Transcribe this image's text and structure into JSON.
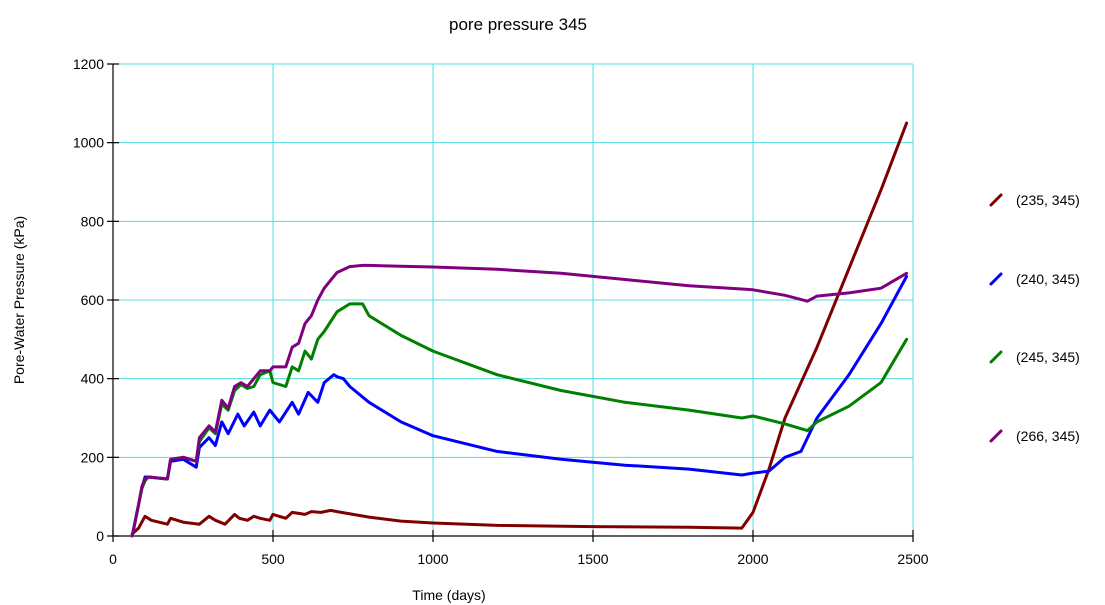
{
  "chart_data": {
    "type": "line",
    "title": "pore pressure 345",
    "xlabel": "Time (days)",
    "ylabel": "Pore-Water Pressure (kPa)",
    "xlim": [
      0,
      2500
    ],
    "ylim": [
      0,
      1200
    ],
    "xticks": [
      0,
      500,
      1000,
      1500,
      2000,
      2500
    ],
    "yticks": [
      0,
      200,
      400,
      600,
      800,
      1000,
      1200
    ],
    "grid": true,
    "grid_color": "#55dddd",
    "legend_position": "right",
    "series": [
      {
        "name": "(235, 345)",
        "color": "#800000",
        "x": [
          60,
          80,
          100,
          120,
          170,
          180,
          220,
          270,
          300,
          320,
          350,
          380,
          395,
          420,
          440,
          460,
          490,
          500,
          540,
          560,
          600,
          620,
          650,
          680,
          700,
          750,
          800,
          900,
          1000,
          1200,
          1500,
          1800,
          1965,
          2000,
          2050,
          2100,
          2200,
          2300,
          2400,
          2480
        ],
        "y": [
          5,
          20,
          50,
          40,
          30,
          45,
          35,
          30,
          50,
          40,
          30,
          55,
          45,
          40,
          50,
          45,
          40,
          55,
          45,
          60,
          55,
          62,
          60,
          65,
          62,
          55,
          48,
          38,
          33,
          27,
          24,
          22,
          20,
          60,
          170,
          300,
          480,
          680,
          880,
          1050
        ]
      },
      {
        "name": "(240, 345)",
        "color": "#0000ff",
        "x": [
          60,
          70,
          80,
          90,
          100,
          110,
          170,
          180,
          220,
          260,
          270,
          300,
          320,
          340,
          360,
          390,
          410,
          440,
          460,
          490,
          520,
          560,
          580,
          610,
          640,
          660,
          690,
          700,
          720,
          740,
          800,
          900,
          1000,
          1200,
          1400,
          1600,
          1800,
          1965,
          2000,
          2050,
          2100,
          2150,
          2200,
          2300,
          2400,
          2480
        ],
        "y": [
          0,
          40,
          80,
          120,
          150,
          150,
          145,
          190,
          195,
          175,
          225,
          250,
          230,
          290,
          260,
          310,
          280,
          315,
          280,
          320,
          290,
          340,
          310,
          365,
          340,
          390,
          410,
          405,
          400,
          380,
          340,
          290,
          255,
          215,
          195,
          180,
          170,
          155,
          160,
          165,
          200,
          215,
          300,
          410,
          540,
          660
        ]
      },
      {
        "name": "(245, 345)",
        "color": "#008000",
        "x": [
          60,
          70,
          80,
          90,
          100,
          110,
          170,
          180,
          220,
          260,
          270,
          300,
          320,
          340,
          360,
          380,
          400,
          420,
          440,
          460,
          490,
          500,
          540,
          560,
          580,
          600,
          620,
          640,
          660,
          700,
          740,
          780,
          800,
          900,
          1000,
          1200,
          1400,
          1600,
          1800,
          1965,
          2000,
          2100,
          2170,
          2200,
          2300,
          2400,
          2480
        ],
        "y": [
          0,
          40,
          80,
          120,
          140,
          150,
          145,
          195,
          200,
          190,
          240,
          275,
          260,
          335,
          320,
          370,
          385,
          375,
          380,
          410,
          420,
          390,
          380,
          430,
          420,
          470,
          450,
          500,
          520,
          570,
          590,
          590,
          560,
          510,
          470,
          410,
          370,
          340,
          320,
          300,
          305,
          285,
          268,
          290,
          330,
          390,
          500
        ]
      },
      {
        "name": "(266, 345)",
        "color": "#800080",
        "x": [
          60,
          70,
          80,
          90,
          100,
          110,
          170,
          180,
          220,
          260,
          270,
          300,
          320,
          340,
          360,
          380,
          400,
          420,
          440,
          460,
          490,
          500,
          540,
          560,
          580,
          600,
          620,
          640,
          660,
          700,
          740,
          780,
          800,
          900,
          1000,
          1200,
          1400,
          1600,
          1800,
          1965,
          2000,
          2100,
          2170,
          2200,
          2300,
          2400,
          2480
        ],
        "y": [
          0,
          40,
          80,
          125,
          145,
          150,
          145,
          195,
          200,
          190,
          250,
          280,
          265,
          345,
          325,
          380,
          390,
          380,
          400,
          420,
          420,
          430,
          430,
          480,
          490,
          540,
          560,
          600,
          630,
          670,
          685,
          688,
          688,
          686,
          684,
          678,
          668,
          652,
          636,
          628,
          626,
          612,
          597,
          610,
          618,
          630,
          668
        ]
      }
    ]
  }
}
